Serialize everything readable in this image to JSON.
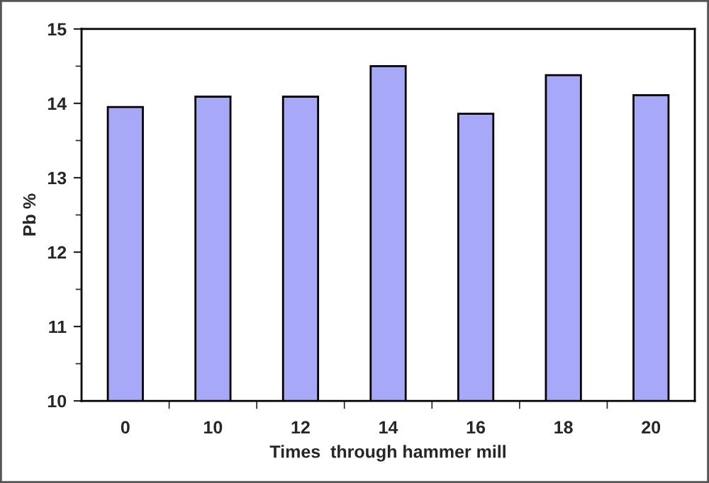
{
  "chart_data": {
    "type": "bar",
    "xlabel": "Times  through hammer mill",
    "ylabel": "Pb %",
    "categories": [
      "0",
      "10",
      "12",
      "14",
      "16",
      "18",
      "20"
    ],
    "values": [
      13.95,
      14.09,
      14.09,
      14.5,
      13.86,
      14.38,
      14.11
    ],
    "color": "#a8a8f8",
    "ylim": [
      10,
      15
    ],
    "yticks": [
      10,
      11,
      12,
      13,
      14,
      15
    ],
    "grid": false
  }
}
